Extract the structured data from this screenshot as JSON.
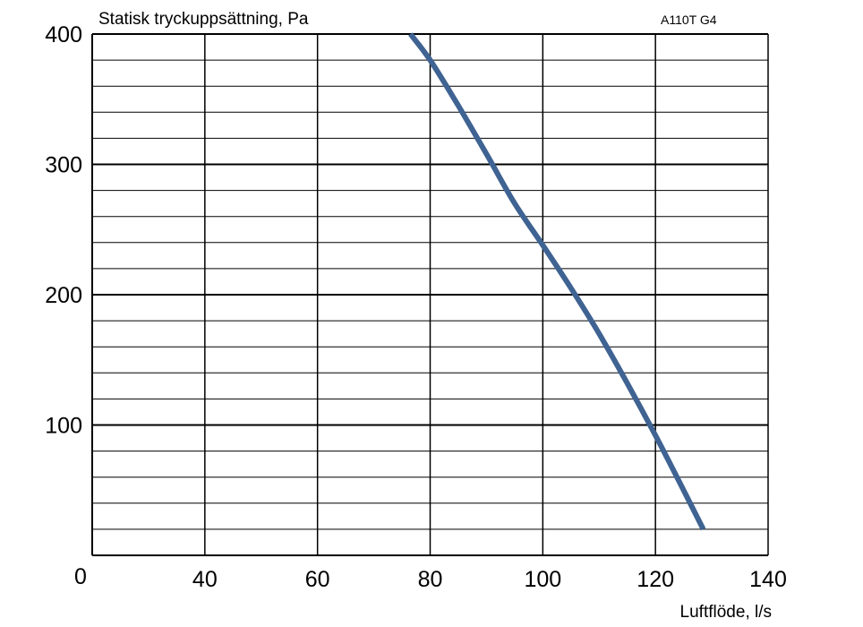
{
  "chart_data": {
    "type": "line",
    "title": "",
    "ylabel": "Statisk tryckuppsättning, Pa",
    "xlabel": "Luftflöde, l/s",
    "model_label": "A110T G4",
    "xlim": [
      20,
      140
    ],
    "ylim": [
      0,
      400
    ],
    "x_ticks": [
      {
        "value": 40,
        "label": "40"
      },
      {
        "value": 60,
        "label": "60"
      },
      {
        "value": 80,
        "label": "80"
      },
      {
        "value": 100,
        "label": "100"
      },
      {
        "value": 120,
        "label": "120"
      },
      {
        "value": 140,
        "label": "140"
      }
    ],
    "origin_label": "0",
    "y_ticks": [
      {
        "value": 100,
        "label": "100"
      },
      {
        "value": 200,
        "label": "200"
      },
      {
        "value": 300,
        "label": "300"
      },
      {
        "value": 400,
        "label": "400"
      }
    ],
    "x_gridlines": [
      40,
      60,
      80,
      100,
      120,
      140
    ],
    "y_major_gridlines": [
      100,
      200,
      300,
      400
    ],
    "y_minor_step": 20,
    "grid": true,
    "line_color": "#3f6392",
    "series": [
      {
        "x": [
          76.5,
          80,
          85,
          90,
          95,
          100,
          105,
          110,
          115,
          120,
          125,
          128.5
        ],
        "y": [
          400,
          380,
          345,
          308,
          270,
          238,
          205,
          170,
          132,
          92,
          50,
          20
        ]
      }
    ]
  }
}
